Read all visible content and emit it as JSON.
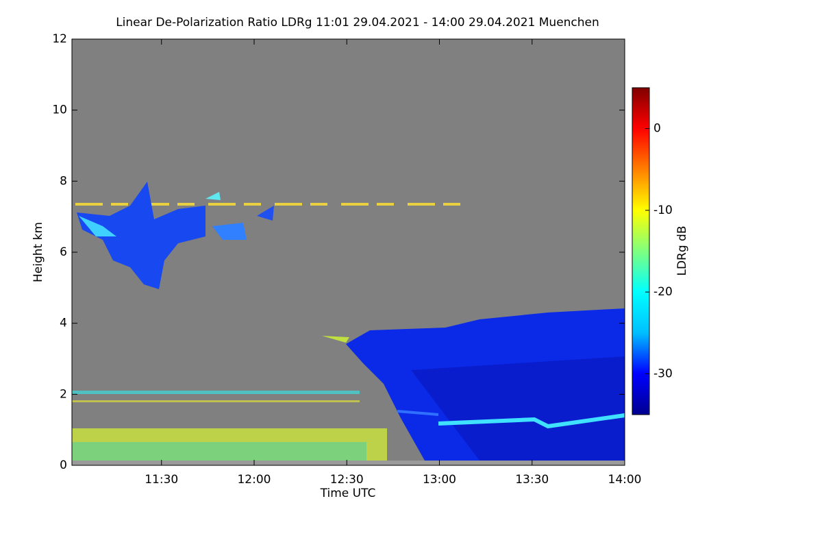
{
  "chart_data": {
    "type": "heatmap",
    "title": "Linear De-Polarization Ratio LDRg   11:01 29.04.2021 - 14:00 29.04.2021 Muenchen",
    "xlabel": "Time UTC",
    "ylabel": "Height km",
    "colorbar_label": "LDRg dB",
    "xlim": [
      661,
      840
    ],
    "xticks": [
      {
        "value": 690,
        "label": "11:30"
      },
      {
        "value": 720,
        "label": "12:00"
      },
      {
        "value": 750,
        "label": "12:30"
      },
      {
        "value": 780,
        "label": "13:00"
      },
      {
        "value": 810,
        "label": "13:30"
      },
      {
        "value": 840,
        "label": "14:00"
      }
    ],
    "ylim": [
      0,
      12
    ],
    "yticks": [
      0,
      2,
      4,
      6,
      8,
      10,
      12
    ],
    "clim": [
      -35,
      5
    ],
    "cticks": [
      0,
      -10,
      -20,
      -30
    ],
    "colormap": [
      "#00008f",
      "#0000ff",
      "#00bfff",
      "#00ffff",
      "#7fff7f",
      "#ffff00",
      "#ff8000",
      "#ff0000",
      "#800000"
    ],
    "background": "#808080"
  }
}
